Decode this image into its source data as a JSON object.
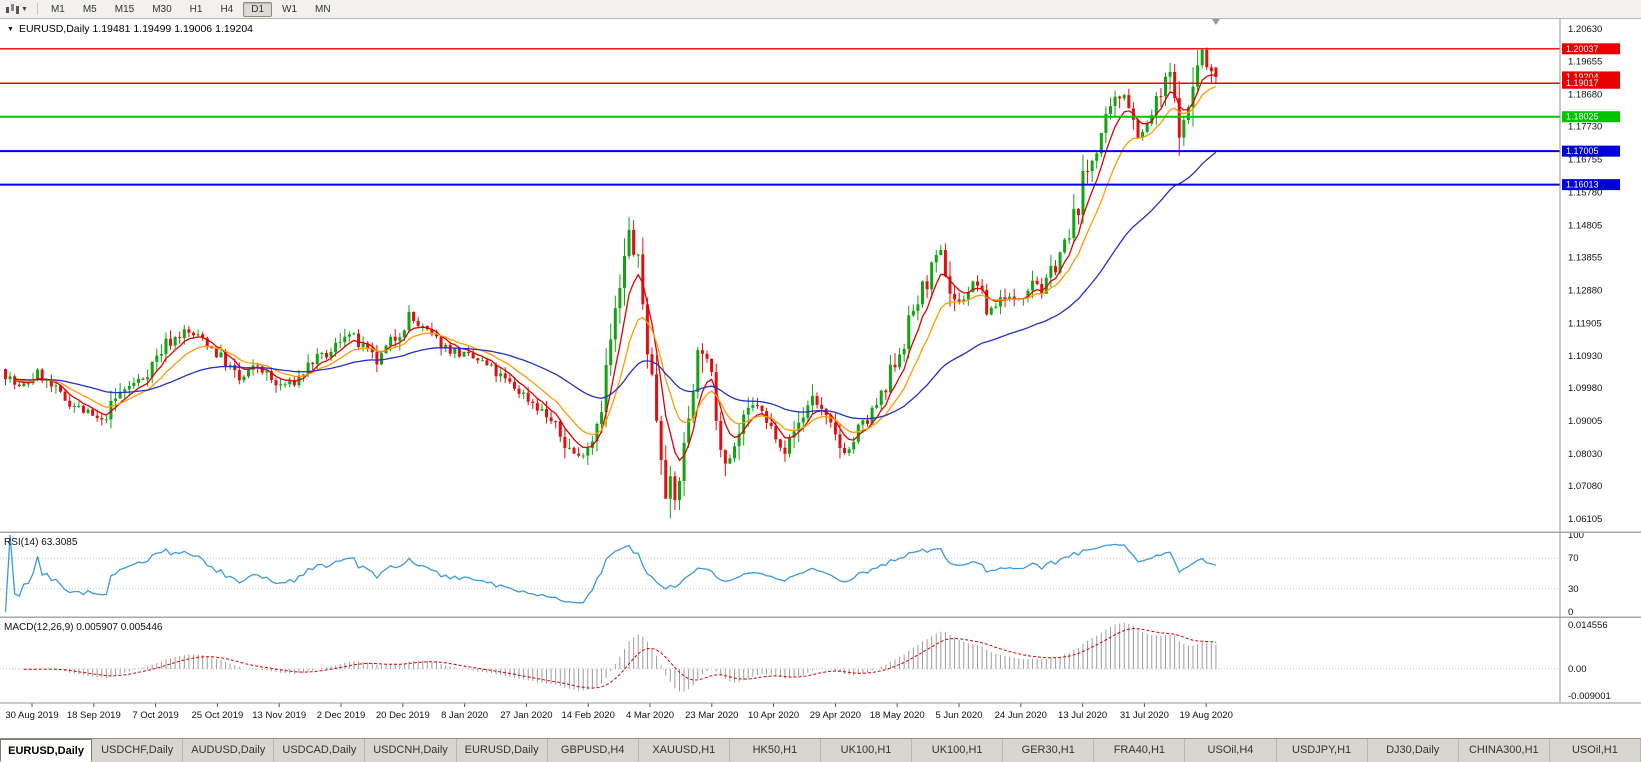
{
  "toolbar": {
    "timeframes": [
      "M1",
      "M5",
      "M15",
      "M30",
      "H1",
      "H4",
      "D1",
      "W1",
      "MN"
    ],
    "active_timeframe": "D1"
  },
  "main_chart": {
    "title": "EURUSD,Daily 1.19481 1.19499 1.19006 1.19204",
    "y_ticks": [
      "1.20630",
      "1.19655",
      "1.18680",
      "1.17730",
      "1.16755",
      "1.15780",
      "1.14805",
      "1.13855",
      "1.12880",
      "1.11905",
      "1.10930",
      "1.09980",
      "1.09005",
      "1.08030",
      "1.07080",
      "1.06105"
    ],
    "hlines": [
      {
        "label": "1.20037",
        "price": 1.20037,
        "color": "#e60000",
        "width": 1.4
      },
      {
        "label": "1.19017",
        "price": 1.19017,
        "color": "#e60000",
        "width": 1.6
      },
      {
        "label": "1.18025",
        "price": 1.18025,
        "color": "#00c400",
        "width": 2
      },
      {
        "label": "1.17005",
        "price": 1.17005,
        "color": "#0000dc",
        "width": 2
      },
      {
        "label": "1.16013",
        "price": 1.16013,
        "color": "#0000dc",
        "width": 2
      }
    ],
    "bid": {
      "label": "1.19204",
      "price": 1.19204,
      "color": "#e60000"
    }
  },
  "rsi_panel": {
    "label": "RSI(14) 63.3085",
    "ticks": [
      {
        "value": 100,
        "text": "100"
      },
      {
        "value": 70,
        "text": "70"
      },
      {
        "value": 30,
        "text": "30"
      },
      {
        "value": 0,
        "text": "0"
      }
    ],
    "dotted_levels": [
      70,
      30
    ],
    "line_color": "#3b9ae1"
  },
  "macd_panel": {
    "label": "MACD(12,26,9) 0.005907 0.005446",
    "ticks": [
      {
        "value": 0.014556,
        "text": "0.014556"
      },
      {
        "value": 0,
        "text": "0.00"
      },
      {
        "value": -0.009001,
        "text": "-0.009001"
      }
    ],
    "histogram_color": "#9c9c9c",
    "signal_color": "#d40000"
  },
  "tabs": [
    "EURUSD,Daily",
    "USDCHF,Daily",
    "AUDUSD,Daily",
    "USDCAD,Daily",
    "USDCNH,Daily",
    "EURUSD,Daily",
    "GBPUSD,H4",
    "XAUUSD,H1",
    "HK50,H1",
    "UK100,H1",
    "UK100,H1",
    "GER30,H1",
    "FRA40,H1",
    "USOil,H4",
    "USDJPY,H1",
    "DJ30,Daily",
    "CHINA300,H1",
    "USOil,H1"
  ],
  "active_tab": 0,
  "chart_data": {
    "type": "candlestick",
    "symbol": "EURUSD",
    "timeframe": "Daily",
    "title": "EURUSD,Daily",
    "ohlc_current": {
      "open": 1.19481,
      "high": 1.19499,
      "low": 1.19006,
      "close": 1.19204
    },
    "ylim": [
      1.0575,
      1.2095
    ],
    "bars": 265,
    "x_labels": [
      "30 Aug 2019",
      "18 Sep 2019",
      "7 Oct 2019",
      "25 Oct 2019",
      "13 Nov 2019",
      "2 Dec 2019",
      "20 Dec 2019",
      "8 Jan 2020",
      "27 Jan 2020",
      "14 Feb 2020",
      "4 Mar 2020",
      "23 Mar 2020",
      "10 Apr 2020",
      "29 Apr 2020",
      "18 May 2020",
      "5 Jun 2020",
      "24 Jun 2020",
      "13 Jul 2020",
      "31 Jul 2020",
      "19 Aug 2020"
    ],
    "price_path": [
      [
        0,
        1.1055
      ],
      [
        4,
        1.0995
      ],
      [
        8,
        1.104
      ],
      [
        13,
        1.0975
      ],
      [
        18,
        1.093
      ],
      [
        22,
        1.0895
      ],
      [
        26,
        1.0985
      ],
      [
        31,
        1.103
      ],
      [
        36,
        1.113
      ],
      [
        40,
        1.1165
      ],
      [
        44,
        1.1145
      ],
      [
        49,
        1.1075
      ],
      [
        52,
        1.102
      ],
      [
        56,
        1.1065
      ],
      [
        60,
        1.1005
      ],
      [
        64,
        1.1015
      ],
      [
        68,
        1.108
      ],
      [
        72,
        1.11
      ],
      [
        75,
        1.117
      ],
      [
        79,
        1.1115
      ],
      [
        82,
        1.1075
      ],
      [
        86,
        1.115
      ],
      [
        89,
        1.121
      ],
      [
        93,
        1.116
      ],
      [
        97,
        1.112
      ],
      [
        101,
        1.1095
      ],
      [
        105,
        1.1075
      ],
      [
        109,
        1.103
      ],
      [
        113,
        1.099
      ],
      [
        117,
        1.0945
      ],
      [
        120,
        1.09
      ],
      [
        123,
        1.0835
      ],
      [
        126,
        1.079
      ],
      [
        129,
        1.085
      ],
      [
        131,
        1.0965
      ],
      [
        133,
        1.1135
      ],
      [
        135,
        1.1285
      ],
      [
        137,
        1.145
      ],
      [
        139,
        1.136
      ],
      [
        141,
        1.113
      ],
      [
        143,
        1.092
      ],
      [
        145,
        1.072
      ],
      [
        147,
        1.066
      ],
      [
        149,
        1.081
      ],
      [
        151,
        1.103
      ],
      [
        153,
        1.114
      ],
      [
        155,
        1.101
      ],
      [
        157,
        1.085
      ],
      [
        159,
        1.0795
      ],
      [
        161,
        1.086
      ],
      [
        163,
        1.092
      ],
      [
        165,
        1.0955
      ],
      [
        167,
        1.089
      ],
      [
        169,
        1.0865
      ],
      [
        171,
        1.082
      ],
      [
        173,
        1.087
      ],
      [
        175,
        1.092
      ],
      [
        177,
        1.0975
      ],
      [
        179,
        1.093
      ],
      [
        181,
        1.087
      ],
      [
        183,
        1.0825
      ],
      [
        185,
        1.0815
      ],
      [
        187,
        1.087
      ],
      [
        189,
        1.09
      ],
      [
        191,
        1.095
      ],
      [
        193,
        1.0985
      ],
      [
        195,
        1.109
      ],
      [
        197,
        1.1135
      ],
      [
        199,
        1.123
      ],
      [
        201,
        1.129
      ],
      [
        203,
        1.1345
      ],
      [
        205,
        1.139
      ],
      [
        207,
        1.129
      ],
      [
        209,
        1.1245
      ],
      [
        211,
        1.129
      ],
      [
        213,
        1.131
      ],
      [
        215,
        1.123
      ],
      [
        217,
        1.1245
      ],
      [
        219,
        1.128
      ],
      [
        221,
        1.125
      ],
      [
        223,
        1.1285
      ],
      [
        225,
        1.133
      ],
      [
        227,
        1.129
      ],
      [
        229,
        1.134
      ],
      [
        231,
        1.14
      ],
      [
        233,
        1.144
      ],
      [
        235,
        1.156
      ],
      [
        237,
        1.164
      ],
      [
        239,
        1.172
      ],
      [
        241,
        1.178
      ],
      [
        243,
        1.184
      ],
      [
        245,
        1.1885
      ],
      [
        247,
        1.179
      ],
      [
        249,
        1.1745
      ],
      [
        251,
        1.181
      ],
      [
        253,
        1.1865
      ],
      [
        255,
        1.193
      ],
      [
        256,
        1.184
      ],
      [
        257,
        1.179
      ],
      [
        258,
        1.177
      ],
      [
        259,
        1.183
      ],
      [
        260,
        1.19
      ],
      [
        261,
        1.195
      ],
      [
        262,
        1.1995
      ],
      [
        263,
        1.1945
      ],
      [
        264,
        1.19204
      ]
    ],
    "wick_extremes": [
      [
        137,
        "high",
        1.1492
      ],
      [
        147,
        "low",
        1.0637
      ],
      [
        262,
        "high",
        1.2008
      ]
    ],
    "horizontal_levels": [
      1.20037,
      1.19017,
      1.18025,
      1.17005,
      1.16013
    ],
    "candle_colors": {
      "up": "#12a312",
      "down": "#e01010"
    },
    "moving_averages": [
      {
        "name": "fast",
        "period": 6,
        "color": "#e00000"
      },
      {
        "name": "medium",
        "period": 13,
        "color": "#ff9a00"
      },
      {
        "name": "slow",
        "period": 45,
        "color": "#2330c8"
      }
    ],
    "indicators": {
      "rsi": {
        "period": 14,
        "current": 63.3085,
        "range": [
          0,
          100
        ],
        "levels": [
          30,
          70
        ]
      },
      "macd": {
        "fast": 12,
        "slow": 26,
        "signal": 9,
        "current_macd": 0.005907,
        "current_signal": 0.005446,
        "scale_range": [
          -0.009001,
          0.014556
        ]
      }
    }
  }
}
